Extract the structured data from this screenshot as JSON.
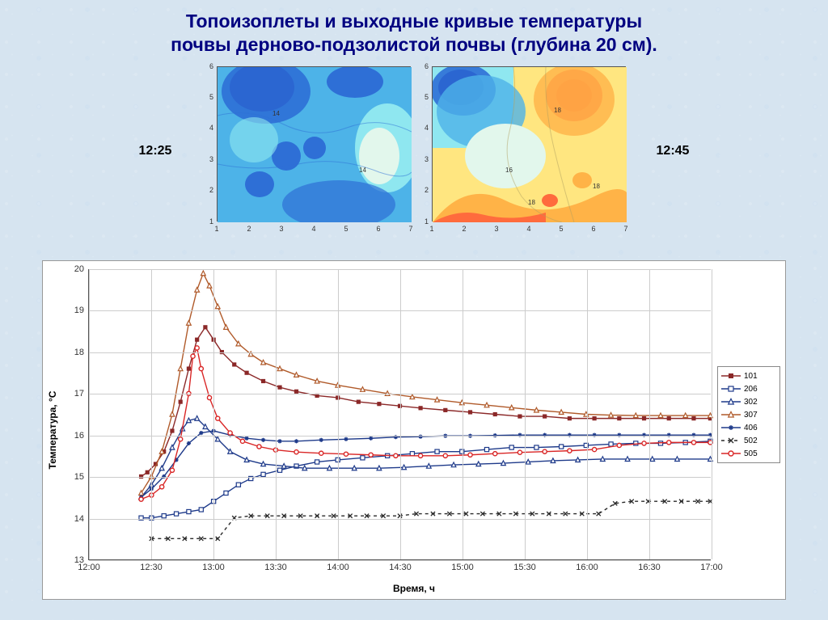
{
  "title_line1": "Топоизоплеты и выходные кривые температуры",
  "title_line2": "почвы дерново-подзолистой почвы (глубина 20 см).",
  "title_color": "#000080",
  "title_fontsize": 23,
  "heatmap_left_label": "12:25",
  "heatmap_right_label": "12:45",
  "heatmap": {
    "xlim": [
      1,
      7
    ],
    "ylim": [
      1,
      6
    ],
    "xticks": [
      1,
      2,
      3,
      4,
      5,
      6,
      7
    ],
    "yticks": [
      1,
      2,
      3,
      4,
      5,
      6
    ],
    "tick_fontsize": 9
  },
  "heatmap_palette": {
    "cold": "#1a1a9e",
    "mid_cold": "#2e6fd6",
    "cool": "#4db3e8",
    "cyan": "#8fe7f0",
    "pale": "#e2f7ec",
    "warm_y": "#ffe680",
    "orange": "#ffb347",
    "hot": "#ff6b3d",
    "red": "#e63a1f"
  },
  "linechart": {
    "background_color": "#ffffff",
    "grid_color": "#cccccc",
    "axis_color": "#555555",
    "xlabel": "Время, ч",
    "ylabel": "Температура, °С",
    "label_fontsize": 12,
    "tick_fontsize": 11,
    "xlim_min": 0,
    "xlim_max": 300,
    "ylim": [
      13,
      20
    ],
    "xticks": [
      0,
      30,
      60,
      90,
      120,
      150,
      180,
      210,
      240,
      270,
      300
    ],
    "xtick_labels": [
      "12:00",
      "12:30",
      "13:00",
      "13:30",
      "14:00",
      "14:30",
      "15:00",
      "15:30",
      "16:00",
      "16:30",
      "17:00"
    ],
    "yticks": [
      13,
      14,
      15,
      16,
      17,
      18,
      19,
      20
    ]
  },
  "legend_items": [
    {
      "id": "101",
      "label": "101",
      "color": "#8b2828",
      "marker": "filled-square",
      "dash": "none"
    },
    {
      "id": "206",
      "label": "206",
      "color": "#1e3a8a",
      "marker": "open-square",
      "dash": "none"
    },
    {
      "id": "302",
      "label": "302",
      "color": "#1e3a8a",
      "marker": "open-triangle",
      "dash": "none"
    },
    {
      "id": "307",
      "label": "307",
      "color": "#b05a2a",
      "marker": "open-triangle",
      "dash": "none"
    },
    {
      "id": "406",
      "label": "406",
      "color": "#1e3a8a",
      "marker": "asterisk",
      "dash": "none"
    },
    {
      "id": "502",
      "label": "502",
      "color": "#2a2a2a",
      "marker": "x",
      "dash": "4,4"
    },
    {
      "id": "505",
      "label": "505",
      "color": "#d92626",
      "marker": "open-circle",
      "dash": "none"
    }
  ],
  "series": {
    "101": {
      "color": "#8b2828",
      "marker": "filled-square",
      "dash": "none",
      "points": [
        [
          25,
          15.0
        ],
        [
          28,
          15.1
        ],
        [
          32,
          15.3
        ],
        [
          36,
          15.6
        ],
        [
          40,
          16.1
        ],
        [
          44,
          16.8
        ],
        [
          48,
          17.6
        ],
        [
          52,
          18.3
        ],
        [
          56,
          18.6
        ],
        [
          60,
          18.3
        ],
        [
          64,
          18.0
        ],
        [
          70,
          17.7
        ],
        [
          76,
          17.5
        ],
        [
          84,
          17.3
        ],
        [
          92,
          17.15
        ],
        [
          100,
          17.05
        ],
        [
          110,
          16.95
        ],
        [
          120,
          16.9
        ],
        [
          130,
          16.8
        ],
        [
          140,
          16.75
        ],
        [
          150,
          16.7
        ],
        [
          160,
          16.65
        ],
        [
          172,
          16.6
        ],
        [
          184,
          16.55
        ],
        [
          196,
          16.5
        ],
        [
          208,
          16.45
        ],
        [
          220,
          16.45
        ],
        [
          232,
          16.4
        ],
        [
          244,
          16.4
        ],
        [
          256,
          16.4
        ],
        [
          268,
          16.4
        ],
        [
          280,
          16.4
        ],
        [
          292,
          16.4
        ],
        [
          300,
          16.4
        ]
      ]
    },
    "206": {
      "color": "#1e3a8a",
      "marker": "open-square",
      "dash": "none",
      "points": [
        [
          25,
          14.0
        ],
        [
          30,
          14.0
        ],
        [
          36,
          14.05
        ],
        [
          42,
          14.1
        ],
        [
          48,
          14.15
        ],
        [
          54,
          14.2
        ],
        [
          60,
          14.4
        ],
        [
          66,
          14.6
        ],
        [
          72,
          14.8
        ],
        [
          78,
          14.95
        ],
        [
          84,
          15.05
        ],
        [
          92,
          15.15
        ],
        [
          100,
          15.25
        ],
        [
          110,
          15.35
        ],
        [
          120,
          15.4
        ],
        [
          132,
          15.45
        ],
        [
          144,
          15.5
        ],
        [
          156,
          15.55
        ],
        [
          168,
          15.6
        ],
        [
          180,
          15.6
        ],
        [
          192,
          15.65
        ],
        [
          204,
          15.7
        ],
        [
          216,
          15.7
        ],
        [
          228,
          15.72
        ],
        [
          240,
          15.75
        ],
        [
          252,
          15.78
        ],
        [
          264,
          15.8
        ],
        [
          276,
          15.8
        ],
        [
          288,
          15.82
        ],
        [
          300,
          15.85
        ]
      ]
    },
    "302": {
      "color": "#1e3a8a",
      "marker": "open-triangle",
      "dash": "none",
      "points": [
        [
          25,
          14.5
        ],
        [
          30,
          14.8
        ],
        [
          35,
          15.2
        ],
        [
          40,
          15.7
        ],
        [
          45,
          16.15
        ],
        [
          48,
          16.35
        ],
        [
          52,
          16.4
        ],
        [
          56,
          16.2
        ],
        [
          62,
          15.9
        ],
        [
          68,
          15.6
        ],
        [
          76,
          15.4
        ],
        [
          84,
          15.3
        ],
        [
          94,
          15.25
        ],
        [
          104,
          15.2
        ],
        [
          116,
          15.2
        ],
        [
          128,
          15.2
        ],
        [
          140,
          15.2
        ],
        [
          152,
          15.22
        ],
        [
          164,
          15.25
        ],
        [
          176,
          15.28
        ],
        [
          188,
          15.3
        ],
        [
          200,
          15.32
        ],
        [
          212,
          15.35
        ],
        [
          224,
          15.38
        ],
        [
          236,
          15.4
        ],
        [
          248,
          15.42
        ],
        [
          260,
          15.42
        ],
        [
          272,
          15.42
        ],
        [
          284,
          15.42
        ],
        [
          300,
          15.42
        ]
      ]
    },
    "307": {
      "color": "#b05a2a",
      "marker": "open-triangle",
      "dash": "none",
      "points": [
        [
          25,
          14.6
        ],
        [
          30,
          15.0
        ],
        [
          35,
          15.6
        ],
        [
          40,
          16.5
        ],
        [
          44,
          17.6
        ],
        [
          48,
          18.7
        ],
        [
          52,
          19.5
        ],
        [
          55,
          19.9
        ],
        [
          58,
          19.6
        ],
        [
          62,
          19.1
        ],
        [
          66,
          18.6
        ],
        [
          72,
          18.2
        ],
        [
          78,
          17.95
        ],
        [
          84,
          17.75
        ],
        [
          92,
          17.6
        ],
        [
          100,
          17.45
        ],
        [
          110,
          17.3
        ],
        [
          120,
          17.2
        ],
        [
          132,
          17.1
        ],
        [
          144,
          17.0
        ],
        [
          156,
          16.92
        ],
        [
          168,
          16.85
        ],
        [
          180,
          16.78
        ],
        [
          192,
          16.72
        ],
        [
          204,
          16.66
        ],
        [
          216,
          16.6
        ],
        [
          228,
          16.55
        ],
        [
          240,
          16.5
        ],
        [
          252,
          16.48
        ],
        [
          264,
          16.47
        ],
        [
          276,
          16.47
        ],
        [
          288,
          16.47
        ],
        [
          300,
          16.47
        ]
      ]
    },
    "406": {
      "color": "#1e3a8a",
      "marker": "asterisk",
      "dash": "none",
      "points": [
        [
          25,
          14.5
        ],
        [
          30,
          14.7
        ],
        [
          36,
          15.0
        ],
        [
          42,
          15.4
        ],
        [
          48,
          15.8
        ],
        [
          54,
          16.05
        ],
        [
          60,
          16.1
        ],
        [
          68,
          16.0
        ],
        [
          76,
          15.92
        ],
        [
          84,
          15.88
        ],
        [
          92,
          15.85
        ],
        [
          100,
          15.85
        ],
        [
          112,
          15.88
        ],
        [
          124,
          15.9
        ],
        [
          136,
          15.92
        ],
        [
          148,
          15.95
        ],
        [
          160,
          15.96
        ],
        [
          172,
          15.98
        ],
        [
          184,
          15.98
        ],
        [
          196,
          15.99
        ],
        [
          208,
          16.0
        ],
        [
          220,
          16.0
        ],
        [
          232,
          16.0
        ],
        [
          244,
          16.0
        ],
        [
          256,
          16.0
        ],
        [
          268,
          16.0
        ],
        [
          280,
          16.0
        ],
        [
          292,
          16.0
        ],
        [
          300,
          16.0
        ]
      ]
    },
    "502": {
      "color": "#2a2a2a",
      "marker": "x",
      "dash": "4,4",
      "points": [
        [
          30,
          13.5
        ],
        [
          38,
          13.5
        ],
        [
          46,
          13.5
        ],
        [
          54,
          13.5
        ],
        [
          62,
          13.5
        ],
        [
          70,
          14.0
        ],
        [
          78,
          14.05
        ],
        [
          86,
          14.05
        ],
        [
          94,
          14.05
        ],
        [
          102,
          14.05
        ],
        [
          110,
          14.05
        ],
        [
          118,
          14.05
        ],
        [
          126,
          14.05
        ],
        [
          134,
          14.05
        ],
        [
          142,
          14.05
        ],
        [
          150,
          14.05
        ],
        [
          158,
          14.1
        ],
        [
          166,
          14.1
        ],
        [
          174,
          14.1
        ],
        [
          182,
          14.1
        ],
        [
          190,
          14.1
        ],
        [
          198,
          14.1
        ],
        [
          206,
          14.1
        ],
        [
          214,
          14.1
        ],
        [
          222,
          14.1
        ],
        [
          230,
          14.1
        ],
        [
          238,
          14.1
        ],
        [
          246,
          14.1
        ],
        [
          254,
          14.35
        ],
        [
          262,
          14.4
        ],
        [
          270,
          14.4
        ],
        [
          278,
          14.4
        ],
        [
          286,
          14.4
        ],
        [
          294,
          14.4
        ],
        [
          300,
          14.4
        ]
      ]
    },
    "505": {
      "color": "#d92626",
      "marker": "open-circle",
      "dash": "none",
      "points": [
        [
          25,
          14.45
        ],
        [
          30,
          14.55
        ],
        [
          35,
          14.75
        ],
        [
          40,
          15.15
        ],
        [
          44,
          15.9
        ],
        [
          48,
          17.0
        ],
        [
          50,
          17.9
        ],
        [
          52,
          18.1
        ],
        [
          54,
          17.6
        ],
        [
          58,
          16.9
        ],
        [
          62,
          16.4
        ],
        [
          68,
          16.05
        ],
        [
          74,
          15.85
        ],
        [
          82,
          15.72
        ],
        [
          90,
          15.64
        ],
        [
          100,
          15.59
        ],
        [
          112,
          15.56
        ],
        [
          124,
          15.54
        ],
        [
          136,
          15.52
        ],
        [
          148,
          15.5
        ],
        [
          160,
          15.5
        ],
        [
          172,
          15.5
        ],
        [
          184,
          15.52
        ],
        [
          196,
          15.55
        ],
        [
          208,
          15.58
        ],
        [
          220,
          15.6
        ],
        [
          232,
          15.62
        ],
        [
          244,
          15.65
        ],
        [
          256,
          15.75
        ],
        [
          268,
          15.8
        ],
        [
          280,
          15.82
        ],
        [
          292,
          15.82
        ],
        [
          300,
          15.82
        ]
      ]
    }
  }
}
